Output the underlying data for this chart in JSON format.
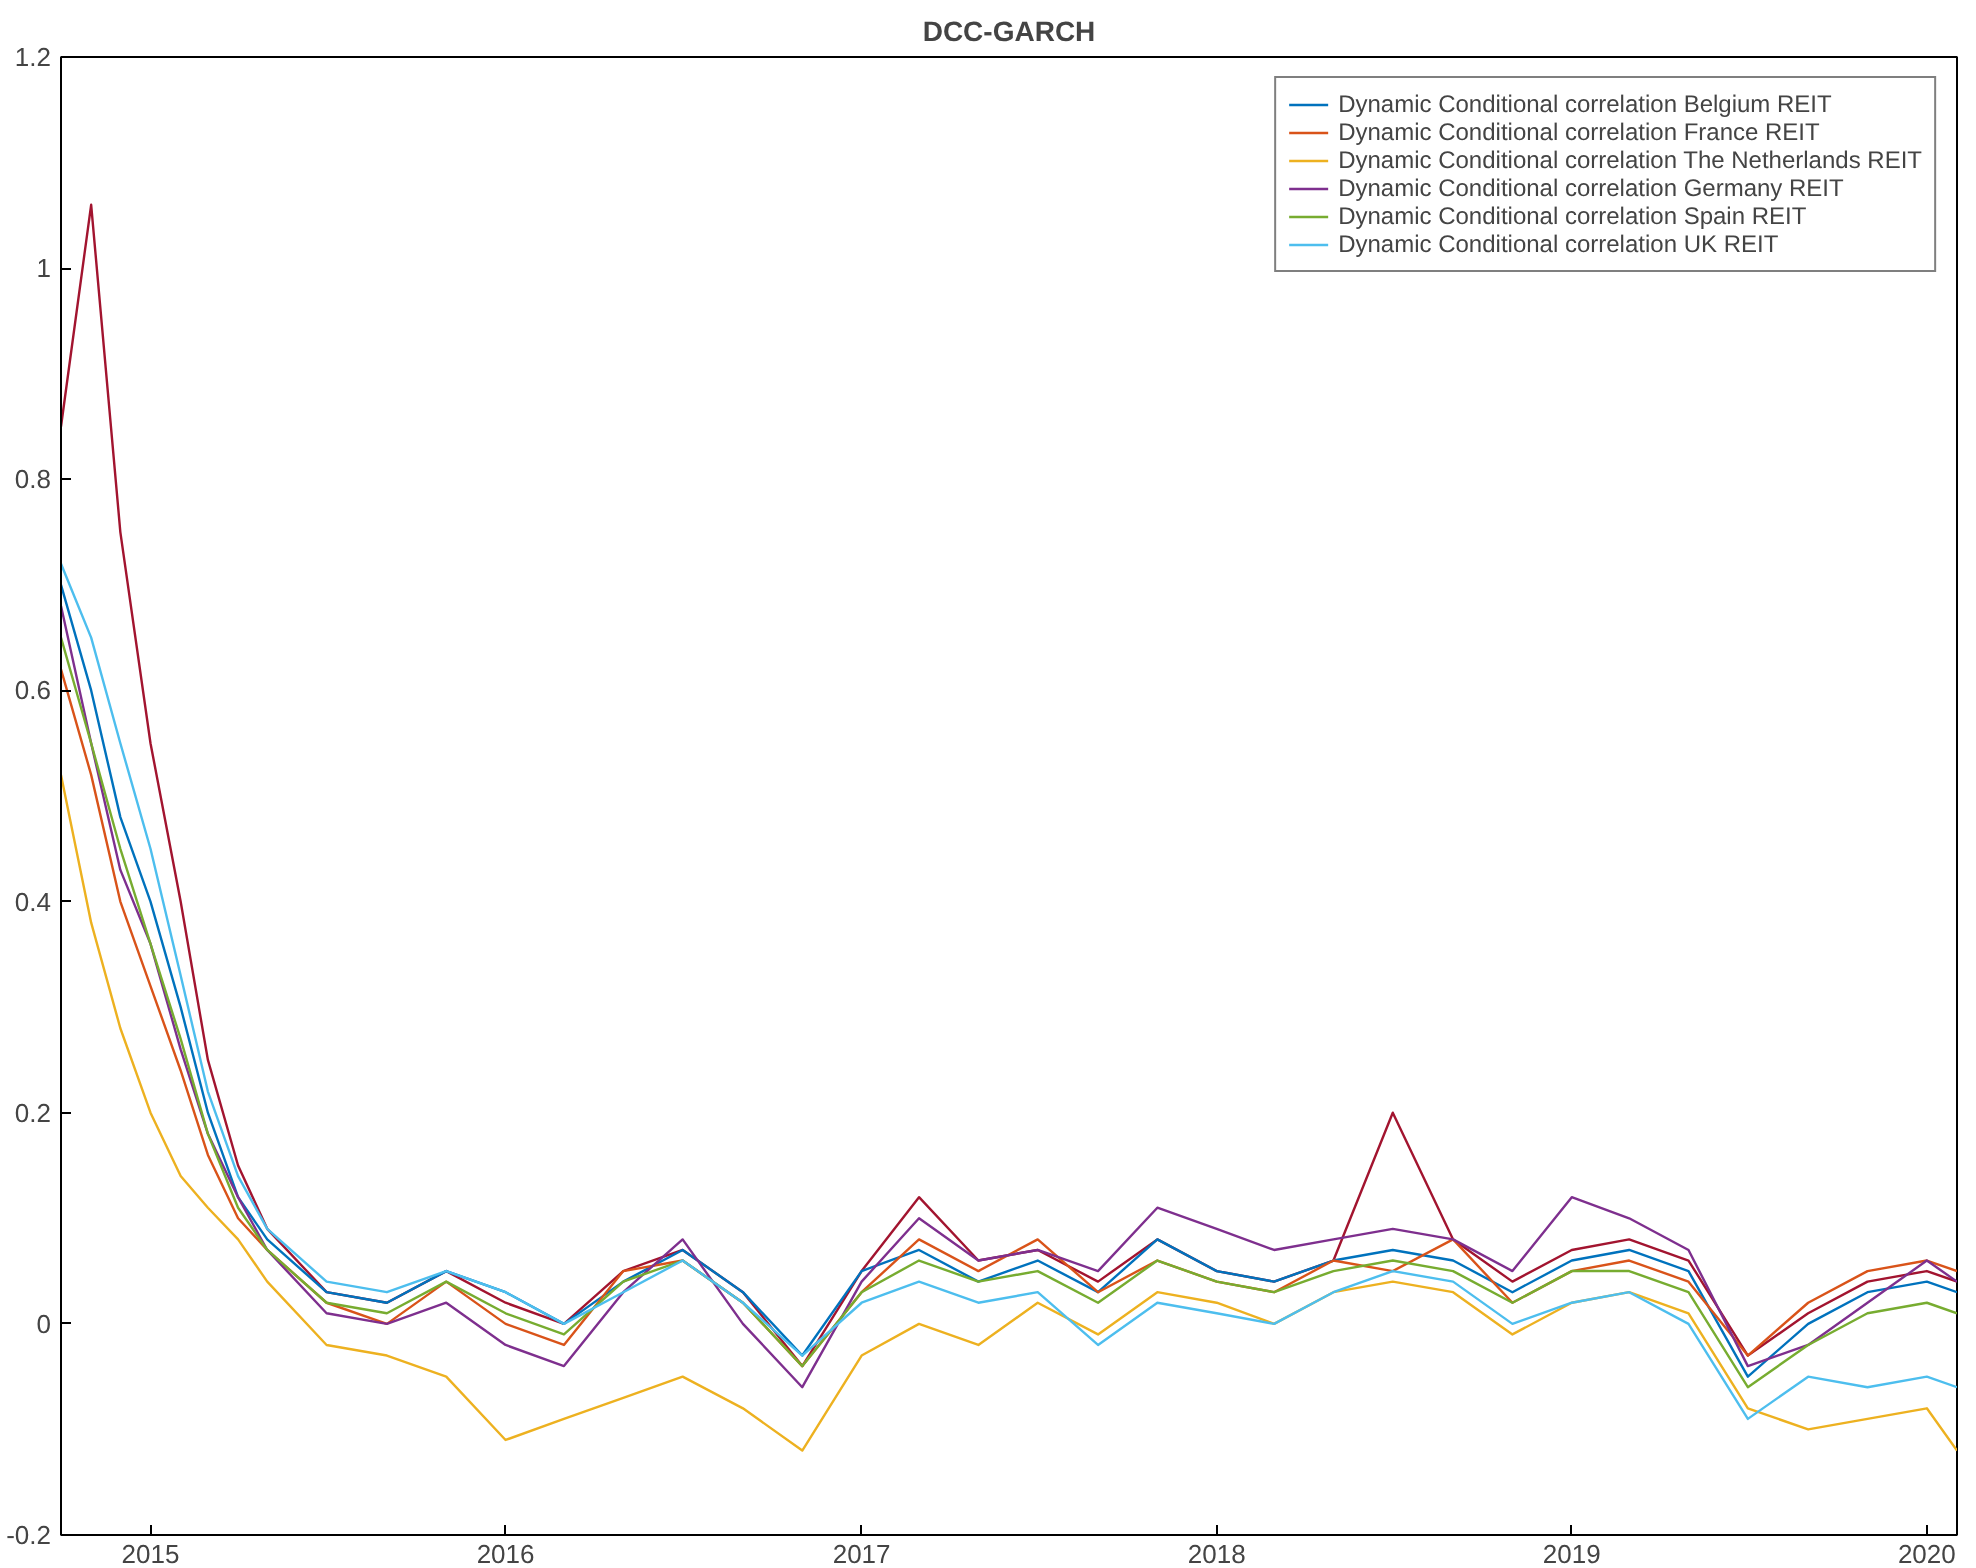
{
  "chart_data": {
    "type": "line",
    "title": "DCC-GARCH",
    "x": [
      "2014-10-01",
      "2014-11-01",
      "2014-12-01",
      "2015-01-01",
      "2015-02-01",
      "2015-03-01",
      "2015-04-01",
      "2015-05-01",
      "2015-07-01",
      "2015-09-01",
      "2015-11-01",
      "2016-01-01",
      "2016-03-01",
      "2016-05-01",
      "2016-07-01",
      "2016-09-01",
      "2016-11-01",
      "2017-01-01",
      "2017-03-01",
      "2017-05-01",
      "2017-07-01",
      "2017-09-01",
      "2017-11-01",
      "2018-01-01",
      "2018-03-01",
      "2018-05-01",
      "2018-07-01",
      "2018-09-01",
      "2018-11-01",
      "2019-01-01",
      "2019-03-01",
      "2019-05-01",
      "2019-07-01",
      "2019-09-01",
      "2019-11-01",
      "2020-01-01",
      "2020-02-01"
    ],
    "series": [
      {
        "color": "#a2142f",
        "values": [
          0.85,
          1.06,
          0.75,
          0.55,
          0.4,
          0.25,
          0.15,
          0.09,
          0.03,
          0.02,
          0.05,
          0.02,
          0.0,
          0.05,
          0.07,
          0.03,
          -0.04,
          0.05,
          0.12,
          0.06,
          0.07,
          0.04,
          0.08,
          0.05,
          0.04,
          0.06,
          0.2,
          0.08,
          0.04,
          0.07,
          0.08,
          0.06,
          -0.03,
          0.01,
          0.04,
          0.05,
          0.04
        ]
      },
      {
        "name": "Dynamic Conditional correlation Belgium REIT",
        "color": "#0072bd",
        "values": [
          0.7,
          0.6,
          0.48,
          0.4,
          0.3,
          0.2,
          0.12,
          0.08,
          0.03,
          0.02,
          0.05,
          0.03,
          0.0,
          0.04,
          0.07,
          0.03,
          -0.03,
          0.05,
          0.07,
          0.04,
          0.06,
          0.03,
          0.08,
          0.05,
          0.04,
          0.06,
          0.07,
          0.06,
          0.03,
          0.06,
          0.07,
          0.05,
          -0.05,
          0.0,
          0.03,
          0.04,
          0.03
        ]
      },
      {
        "name": "Dynamic Conditional correlation France REIT",
        "color": "#d95319",
        "values": [
          0.62,
          0.52,
          0.4,
          0.32,
          0.24,
          0.16,
          0.1,
          0.07,
          0.02,
          0.0,
          0.04,
          0.0,
          -0.02,
          0.05,
          0.06,
          0.02,
          -0.04,
          0.03,
          0.08,
          0.05,
          0.08,
          0.03,
          0.06,
          0.04,
          0.03,
          0.06,
          0.05,
          0.08,
          0.02,
          0.05,
          0.06,
          0.04,
          -0.03,
          0.02,
          0.05,
          0.06,
          0.05
        ]
      },
      {
        "name": "Dynamic Conditional correlation The Netherlands REIT",
        "color": "#edb120",
        "values": [
          0.52,
          0.38,
          0.28,
          0.2,
          0.14,
          0.11,
          0.08,
          0.04,
          -0.02,
          -0.03,
          -0.05,
          -0.11,
          -0.09,
          -0.07,
          -0.05,
          -0.08,
          -0.12,
          -0.03,
          0.0,
          -0.02,
          0.02,
          -0.01,
          0.03,
          0.02,
          0.0,
          0.03,
          0.04,
          0.03,
          -0.01,
          0.02,
          0.03,
          0.01,
          -0.08,
          -0.1,
          -0.09,
          -0.08,
          -0.12
        ]
      },
      {
        "name": "Dynamic Conditional correlation Germany REIT",
        "color": "#7e2f8e",
        "values": [
          0.68,
          0.55,
          0.43,
          0.36,
          0.26,
          0.18,
          0.12,
          0.07,
          0.01,
          0.0,
          0.02,
          -0.02,
          -0.04,
          0.03,
          0.08,
          0.0,
          -0.06,
          0.04,
          0.1,
          0.06,
          0.07,
          0.05,
          0.11,
          0.09,
          0.07,
          0.08,
          0.09,
          0.08,
          0.05,
          0.12,
          0.1,
          0.07,
          -0.04,
          -0.02,
          0.02,
          0.06,
          0.04
        ]
      },
      {
        "name": "Dynamic Conditional correlation Spain REIT",
        "color": "#77ac30",
        "values": [
          0.65,
          0.55,
          0.45,
          0.36,
          0.27,
          0.18,
          0.11,
          0.07,
          0.02,
          0.01,
          0.04,
          0.01,
          -0.01,
          0.04,
          0.06,
          0.02,
          -0.04,
          0.03,
          0.06,
          0.04,
          0.05,
          0.02,
          0.06,
          0.04,
          0.03,
          0.05,
          0.06,
          0.05,
          0.02,
          0.05,
          0.05,
          0.03,
          -0.06,
          -0.02,
          0.01,
          0.02,
          0.01
        ]
      },
      {
        "name": "Dynamic Conditional correlation UK REIT",
        "color": "#4dbeee",
        "values": [
          0.72,
          0.65,
          0.55,
          0.45,
          0.33,
          0.22,
          0.14,
          0.09,
          0.04,
          0.03,
          0.05,
          0.03,
          0.0,
          0.03,
          0.06,
          0.02,
          -0.03,
          0.02,
          0.04,
          0.02,
          0.03,
          -0.02,
          0.02,
          0.01,
          0.0,
          0.03,
          0.05,
          0.04,
          0.0,
          0.02,
          0.03,
          0.0,
          -0.09,
          -0.05,
          -0.06,
          -0.05,
          -0.06
        ]
      }
    ],
    "xlim": [
      "2014-10-01",
      "2020-02-01"
    ],
    "xticks": [
      {
        "value": "2015-01-01",
        "label": "2015"
      },
      {
        "value": "2016-01-01",
        "label": "2016"
      },
      {
        "value": "2017-01-01",
        "label": "2017"
      },
      {
        "value": "2018-01-01",
        "label": "2018"
      },
      {
        "value": "2019-01-01",
        "label": "2019"
      },
      {
        "value": "2020-01-01",
        "label": "2020"
      }
    ],
    "ylim": [
      -0.2,
      1.2
    ],
    "yticks": [
      -0.2,
      0,
      0.2,
      0.4,
      0.6,
      0.8,
      1,
      1.2
    ],
    "grid": false,
    "legend": "top right",
    "marker": "none",
    "line_style": "solid"
  }
}
